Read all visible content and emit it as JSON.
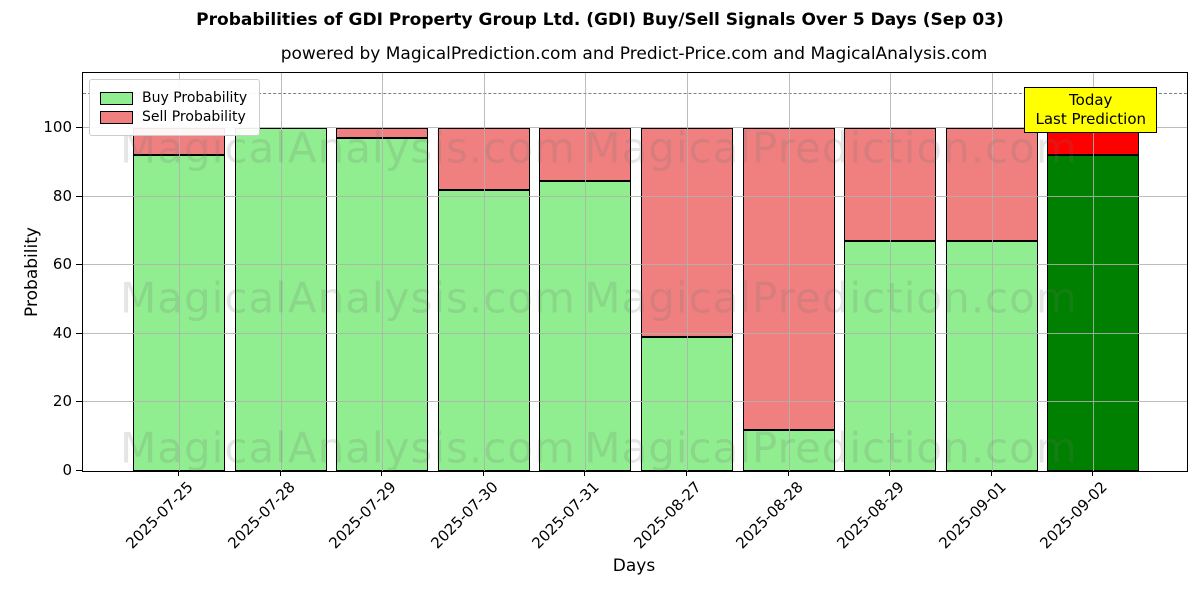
{
  "title": "Probabilities of GDI Property Group Ltd. (GDI) Buy/Sell Signals Over 5 Days (Sep 03)",
  "subtitle": "powered by MagicalPrediction.com and Predict-Price.com and MagicalAnalysis.com",
  "legend": {
    "buy_label": "Buy Probability",
    "sell_label": "Sell Probability"
  },
  "annotation": {
    "line1": "Today",
    "line2": "Last Prediction",
    "bg_color": "#ffff00"
  },
  "watermarks": {
    "left_text": "MagicalAnalysis.com",
    "right_text": "MagicalPrediction.com"
  },
  "chart_data": {
    "type": "bar",
    "stacked": true,
    "title": "Probabilities of GDI Property Group Ltd. (GDI) Buy/Sell Signals Over 5 Days (Sep 03)",
    "xlabel": "Days",
    "ylabel": "Probability",
    "categories": [
      "2025-07-25",
      "2025-07-28",
      "2025-07-29",
      "2025-07-30",
      "2025-07-31",
      "2025-08-27",
      "2025-08-28",
      "2025-08-29",
      "2025-09-01",
      "2025-09-02"
    ],
    "series": [
      {
        "name": "Buy Probability",
        "color": "#90ee90",
        "values": [
          92,
          100,
          97,
          82,
          84.5,
          39,
          12,
          67,
          67,
          92
        ]
      },
      {
        "name": "Sell Probability",
        "color": "#f08080",
        "values": [
          8,
          0,
          3,
          18,
          15.5,
          61,
          88,
          33,
          33,
          8
        ]
      }
    ],
    "today_bar_colors": {
      "buy": "#008000",
      "sell": "#ff0000"
    },
    "today_bar_index": 9,
    "yticks": [
      0,
      20,
      40,
      60,
      80,
      100
    ],
    "ylim": [
      0,
      116
    ],
    "dashed_line_y": 110,
    "grid": true,
    "legend_position": "upper left"
  }
}
